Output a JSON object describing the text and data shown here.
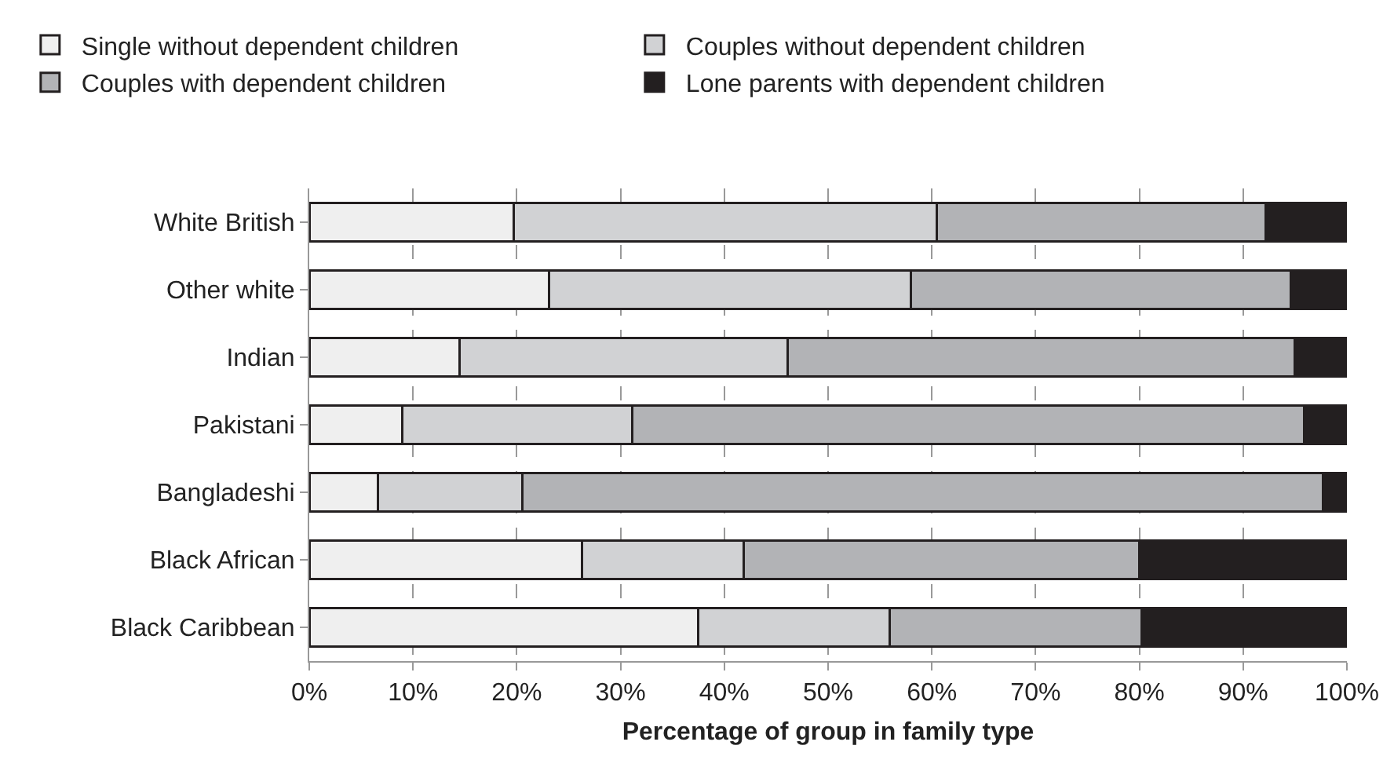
{
  "chart_data": {
    "type": "bar",
    "orientation": "horizontal",
    "stacked": true,
    "xlabel": "Percentage of group in family type",
    "categories": [
      "White British",
      "Other white",
      "Indian",
      "Pakistani",
      "Bangladeshi",
      "Black African",
      "Black Caribbean"
    ],
    "series": [
      {
        "name": "Single without dependent children",
        "color": "#efefef",
        "values": [
          19.7,
          23.1,
          14.5,
          9.0,
          6.6,
          26.3,
          37.5
        ]
      },
      {
        "name": "Couples without dependent children",
        "color": "#d1d2d4",
        "values": [
          40.8,
          34.9,
          31.6,
          22.1,
          13.9,
          15.6,
          18.4
        ]
      },
      {
        "name": "Couples with dependent children",
        "color": "#b2b3b6",
        "values": [
          31.7,
          36.6,
          48.9,
          64.8,
          77.2,
          38.1,
          24.3
        ]
      },
      {
        "name": "Lone parents with dependent children",
        "color": "#231f20",
        "values": [
          7.8,
          5.4,
          5.0,
          4.1,
          2.3,
          20.0,
          19.8
        ]
      }
    ],
    "xlim": [
      0,
      100
    ],
    "xticks": [
      {
        "value": 0,
        "label": "0%"
      },
      {
        "value": 10,
        "label": "10%"
      },
      {
        "value": 20,
        "label": "20%"
      },
      {
        "value": 30,
        "label": "30%"
      },
      {
        "value": 40,
        "label": "40%"
      },
      {
        "value": 50,
        "label": "50%"
      },
      {
        "value": 60,
        "label": "60%"
      },
      {
        "value": 70,
        "label": "70%"
      },
      {
        "value": 80,
        "label": "80%"
      },
      {
        "value": 90,
        "label": "90%"
      },
      {
        "value": 100,
        "label": "100%"
      }
    ],
    "grid": "x",
    "legend": "top"
  }
}
